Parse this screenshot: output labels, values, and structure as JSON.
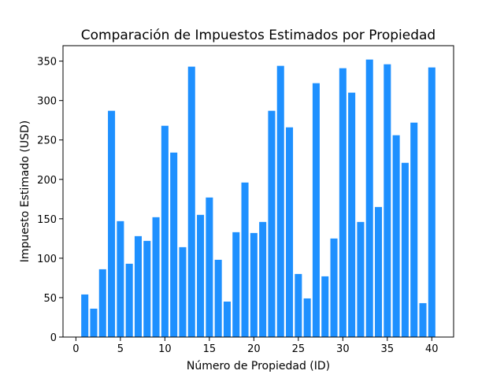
{
  "chart_data": {
    "type": "bar",
    "title": "Comparación de Impuestos Estimados por Propiedad",
    "xlabel": "Número de Propiedad (ID)",
    "ylabel": "Impuesto Estimado (USD)",
    "bar_color": "#1e90ff",
    "x": [
      1,
      2,
      3,
      4,
      5,
      6,
      7,
      8,
      9,
      10,
      11,
      12,
      13,
      14,
      15,
      16,
      17,
      18,
      19,
      20,
      21,
      22,
      23,
      24,
      25,
      26,
      27,
      28,
      29,
      30,
      31,
      32,
      33,
      34,
      35,
      36,
      37,
      38,
      39,
      40
    ],
    "values": [
      54,
      36,
      86,
      287,
      147,
      93,
      128,
      122,
      152,
      268,
      234,
      114,
      343,
      155,
      177,
      98,
      45,
      133,
      196,
      132,
      146,
      287,
      344,
      266,
      80,
      49,
      322,
      77,
      125,
      341,
      310,
      146,
      352,
      165,
      346,
      256,
      221,
      272,
      43,
      342
    ],
    "xlim": [
      -1.45,
      42.45
    ],
    "ylim": [
      0,
      369.6
    ],
    "xticks": [
      0,
      5,
      10,
      15,
      20,
      25,
      30,
      35,
      40
    ],
    "yticks": [
      0,
      50,
      100,
      150,
      200,
      250,
      300,
      350
    ],
    "grid": false,
    "legend": false
  }
}
